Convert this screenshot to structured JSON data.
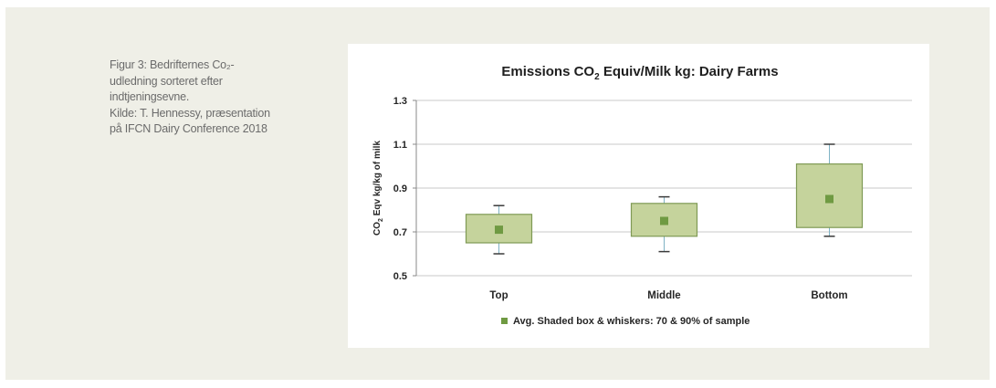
{
  "caption": {
    "lines": [
      "Figur 3: Bedrifternes Co₂-",
      "udledning sorteret efter",
      "indtjeningsevne.",
      "Kilde: T. Hennessy, præsentation",
      "på IFCN Dairy Conference 2018"
    ]
  },
  "chart_data": {
    "type": "box",
    "title_prefix": "Emissions CO",
    "title_sub": "2",
    "title_suffix": " Equiv/Milk kg: Dairy Farms",
    "ylabel_prefix": "CO",
    "ylabel_sub": "2",
    "ylabel_suffix": " Eqv kg/kg of milk",
    "xlabel": "",
    "ylim": [
      0.5,
      1.3
    ],
    "yticks": [
      0.5,
      0.7,
      0.9,
      1.1,
      1.3
    ],
    "ytick_labels": [
      "0.5",
      "0.7",
      "0.9",
      "1.1",
      "1.3"
    ],
    "grid": true,
    "categories": [
      "Top",
      "Middle",
      "Bottom"
    ],
    "series": [
      {
        "category": "Top",
        "whisker_low": 0.6,
        "box_low": 0.65,
        "avg": 0.71,
        "box_high": 0.78,
        "whisker_high": 0.82
      },
      {
        "category": "Middle",
        "whisker_low": 0.61,
        "box_low": 0.68,
        "avg": 0.75,
        "box_high": 0.83,
        "whisker_high": 0.86
      },
      {
        "category": "Bottom",
        "whisker_low": 0.68,
        "box_low": 0.72,
        "avg": 0.85,
        "box_high": 1.01,
        "whisker_high": 1.1
      }
    ],
    "legend": {
      "label": "Avg. Shaded box & whiskers: 70 & 90% of sample",
      "position": "bottom"
    },
    "colors": {
      "box_fill": "#c5d39c",
      "box_stroke": "#7f9a55",
      "avg_marker": "#6f9a42",
      "whisker": "#7fb2c4",
      "whisker_cap": "#3a3a3a",
      "grid": "#c8c8c8"
    }
  }
}
